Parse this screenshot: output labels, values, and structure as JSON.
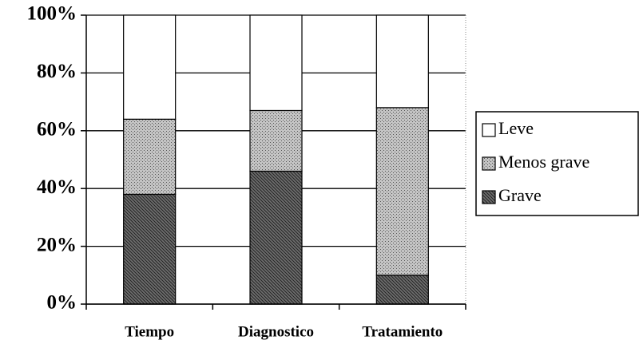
{
  "chart_data": {
    "type": "stacked_bar",
    "categories": [
      "Tiempo",
      "Diagnostico",
      "Tratamiento"
    ],
    "series": [
      {
        "name": "Grave",
        "color": "#6e6e6e",
        "values": [
          38,
          46,
          10
        ]
      },
      {
        "name": "Menos grave",
        "color": "#c4c4c4",
        "values": [
          26,
          21,
          58
        ]
      },
      {
        "name": "Leve",
        "color": "#ffffff",
        "values": [
          36,
          33,
          32
        ]
      }
    ],
    "ylim": [
      0,
      100
    ],
    "yticks": [
      {
        "value": 0,
        "label": "0%"
      },
      {
        "value": 20,
        "label": "20%"
      },
      {
        "value": 40,
        "label": "40%"
      },
      {
        "value": 60,
        "label": "60%"
      },
      {
        "value": 80,
        "label": "80%"
      },
      {
        "value": 100,
        "label": "100%"
      }
    ],
    "grid": true,
    "legend": "right"
  }
}
